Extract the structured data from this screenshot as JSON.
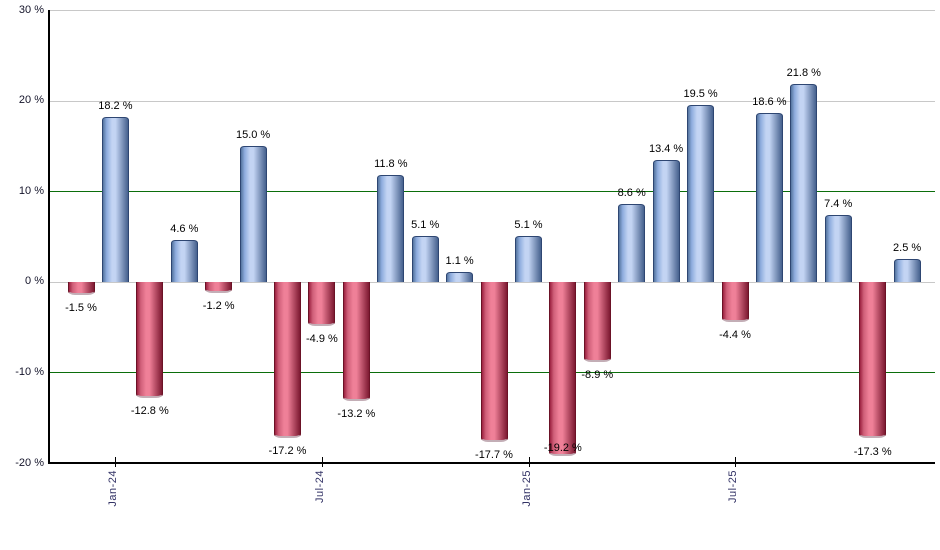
{
  "chart_data": {
    "type": "bar",
    "title": "",
    "xlabel": "",
    "ylabel": "",
    "unit": "%",
    "ylim": [
      -20,
      30
    ],
    "grid": true,
    "legend": "none",
    "values": [
      -1.5,
      18.2,
      -12.8,
      4.6,
      -1.2,
      15.0,
      -17.2,
      -4.9,
      -13.2,
      11.8,
      5.1,
      1.1,
      -17.7,
      5.1,
      -19.2,
      -8.9,
      8.6,
      13.4,
      19.5,
      -4.4,
      18.6,
      21.8,
      7.4,
      -17.3,
      2.5
    ],
    "point_labels": [
      "-1.5 %",
      "18.2 %",
      "-12.8 %",
      "4.6 %",
      "-1.2 %",
      "15.0 %",
      "-17.2 %",
      "-4.9 %",
      "-13.2 %",
      "11.8 %",
      "5.1 %",
      "1.1 %",
      "-17.7 %",
      "5.1 %",
      "-19.2 %",
      "-8.9 %",
      "8.6 %",
      "13.4 %",
      "19.5 %",
      "-4.4 %",
      "18.6 %",
      "21.8 %",
      "7.4 %",
      "-17.3 %",
      "2.5 %"
    ],
    "x_ticks": [
      {
        "bar_index": 1,
        "label": "Jan-24"
      },
      {
        "bar_index": 7,
        "label": "Jul-24"
      },
      {
        "bar_index": 13,
        "label": "Jan-25"
      },
      {
        "bar_index": 19,
        "label": "Jul-25"
      }
    ],
    "y_ticks": [
      {
        "value": 30,
        "label": "30 %",
        "grid_style": "gray"
      },
      {
        "value": 20,
        "label": "20 %",
        "grid_style": "gray"
      },
      {
        "value": 10,
        "label": "10 %",
        "grid_style": "green"
      },
      {
        "value": 0,
        "label": "0 %",
        "grid_style": "gray"
      },
      {
        "value": -10,
        "label": "-10 %",
        "grid_style": "green"
      },
      {
        "value": -20,
        "label": "-20 %",
        "grid_style": "axis"
      }
    ],
    "colors": {
      "background": "#ffffff",
      "grid_gray": "#c8c8c8",
      "grid_green": "#0b6e0b",
      "axis": "#000000",
      "positive_gradient": [
        "#54749f",
        "#8fadde",
        "#c3d4f3",
        "#46618e"
      ],
      "positive_border": "#2e4672",
      "negative_gradient": [
        "#9c2240",
        "#d05f79",
        "#ef8098",
        "#7d1a32"
      ],
      "negative_border": "#6b1226",
      "value_label_color": "#000000",
      "x_tick_label_color": "#333366",
      "y_tick_label_color": "#14142a"
    }
  }
}
